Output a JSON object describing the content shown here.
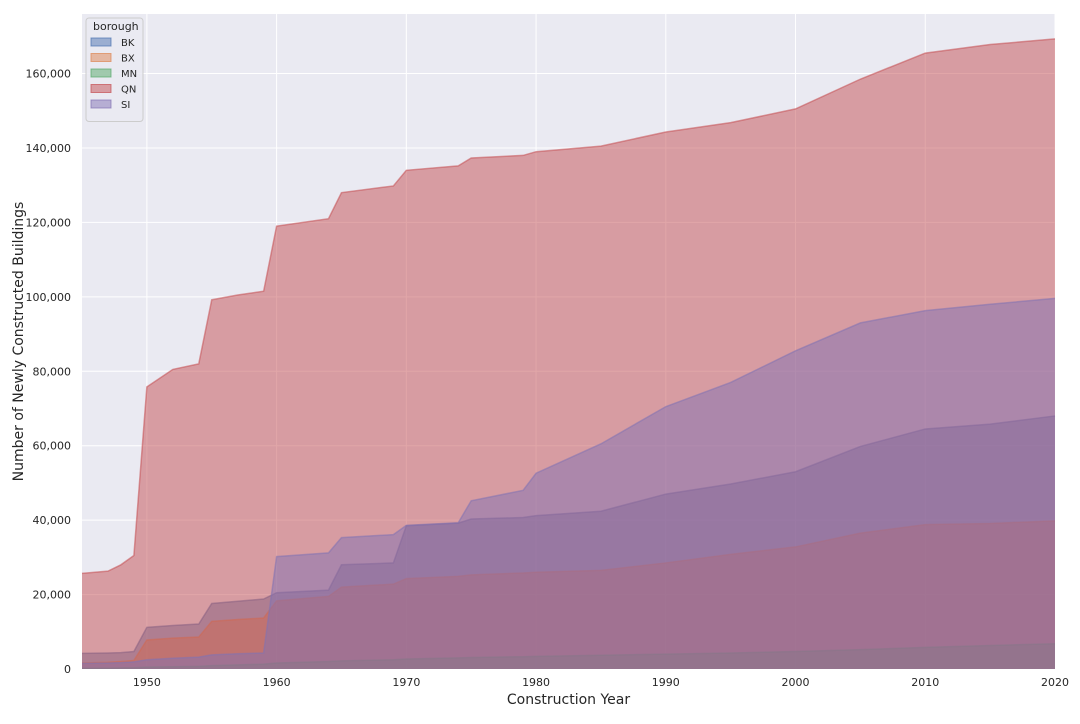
{
  "chart_data": {
    "type": "area",
    "xlabel": "Construction Year",
    "ylabel": "Number of Newly Constructed Buildings",
    "xlim": [
      1945,
      2020
    ],
    "ylim": [
      0,
      176000
    ],
    "xticks": [
      1950,
      1960,
      1970,
      1980,
      1990,
      2000,
      2010,
      2020
    ],
    "xtick_labels": [
      "1950",
      "1960",
      "1970",
      "1980",
      "1990",
      "2000",
      "2010",
      "2020"
    ],
    "yticks": [
      0,
      20000,
      40000,
      60000,
      80000,
      100000,
      120000,
      140000,
      160000
    ],
    "ytick_labels": [
      "0",
      "20,000",
      "40,000",
      "60,000",
      "80,000",
      "100,000",
      "120,000",
      "140,000",
      "160,000"
    ],
    "grid": true,
    "stacked": false,
    "legend": {
      "title": "borough",
      "placement": "top-left"
    },
    "background": "#eaeaf2",
    "x": [
      1945,
      1947,
      1948,
      1949,
      1950,
      1952,
      1954,
      1955,
      1957,
      1959,
      1960,
      1964,
      1965,
      1969,
      1970,
      1974,
      1975,
      1979,
      1980,
      1985,
      1990,
      1995,
      2000,
      2005,
      2010,
      2015,
      2020
    ],
    "series": [
      {
        "name": "BK",
        "color": "#4c72b0",
        "values": [
          4200,
          4300,
          4400,
          4700,
          11200,
          11700,
          12100,
          17600,
          18200,
          18800,
          20500,
          21200,
          28000,
          28500,
          38500,
          39200,
          40300,
          40700,
          41200,
          42400,
          47000,
          49700,
          53000,
          59800,
          64500,
          65800,
          68000
        ]
      },
      {
        "name": "BX",
        "color": "#dd8452",
        "values": [
          1600,
          1800,
          2000,
          2300,
          7800,
          8300,
          8600,
          12800,
          13300,
          13700,
          18300,
          19500,
          22000,
          22800,
          24300,
          24900,
          25300,
          25800,
          26000,
          26500,
          28500,
          30800,
          32800,
          36500,
          38800,
          39100,
          39800
        ]
      },
      {
        "name": "MN",
        "color": "#55a868",
        "values": [
          200,
          250,
          300,
          350,
          500,
          600,
          700,
          900,
          1100,
          1300,
          1600,
          2000,
          2200,
          2500,
          2700,
          3000,
          3100,
          3300,
          3400,
          3700,
          4000,
          4300,
          4700,
          5200,
          5800,
          6300,
          6800
        ]
      },
      {
        "name": "QN",
        "color": "#c44e52",
        "values": [
          25700,
          26300,
          28000,
          30500,
          75800,
          80500,
          82000,
          99200,
          100500,
          101500,
          119000,
          121000,
          128000,
          129800,
          134000,
          135200,
          137300,
          138000,
          139000,
          140500,
          144300,
          146800,
          150500,
          158500,
          165500,
          167800,
          169300
        ]
      },
      {
        "name": "SI",
        "color": "#8172b3",
        "values": [
          1500,
          1600,
          1700,
          1900,
          2500,
          2900,
          3200,
          3800,
          4100,
          4300,
          30200,
          31200,
          35300,
          36100,
          38600,
          39300,
          45200,
          48000,
          52600,
          60500,
          70500,
          77000,
          85500,
          93000,
          96300,
          98000,
          99600
        ]
      }
    ]
  }
}
